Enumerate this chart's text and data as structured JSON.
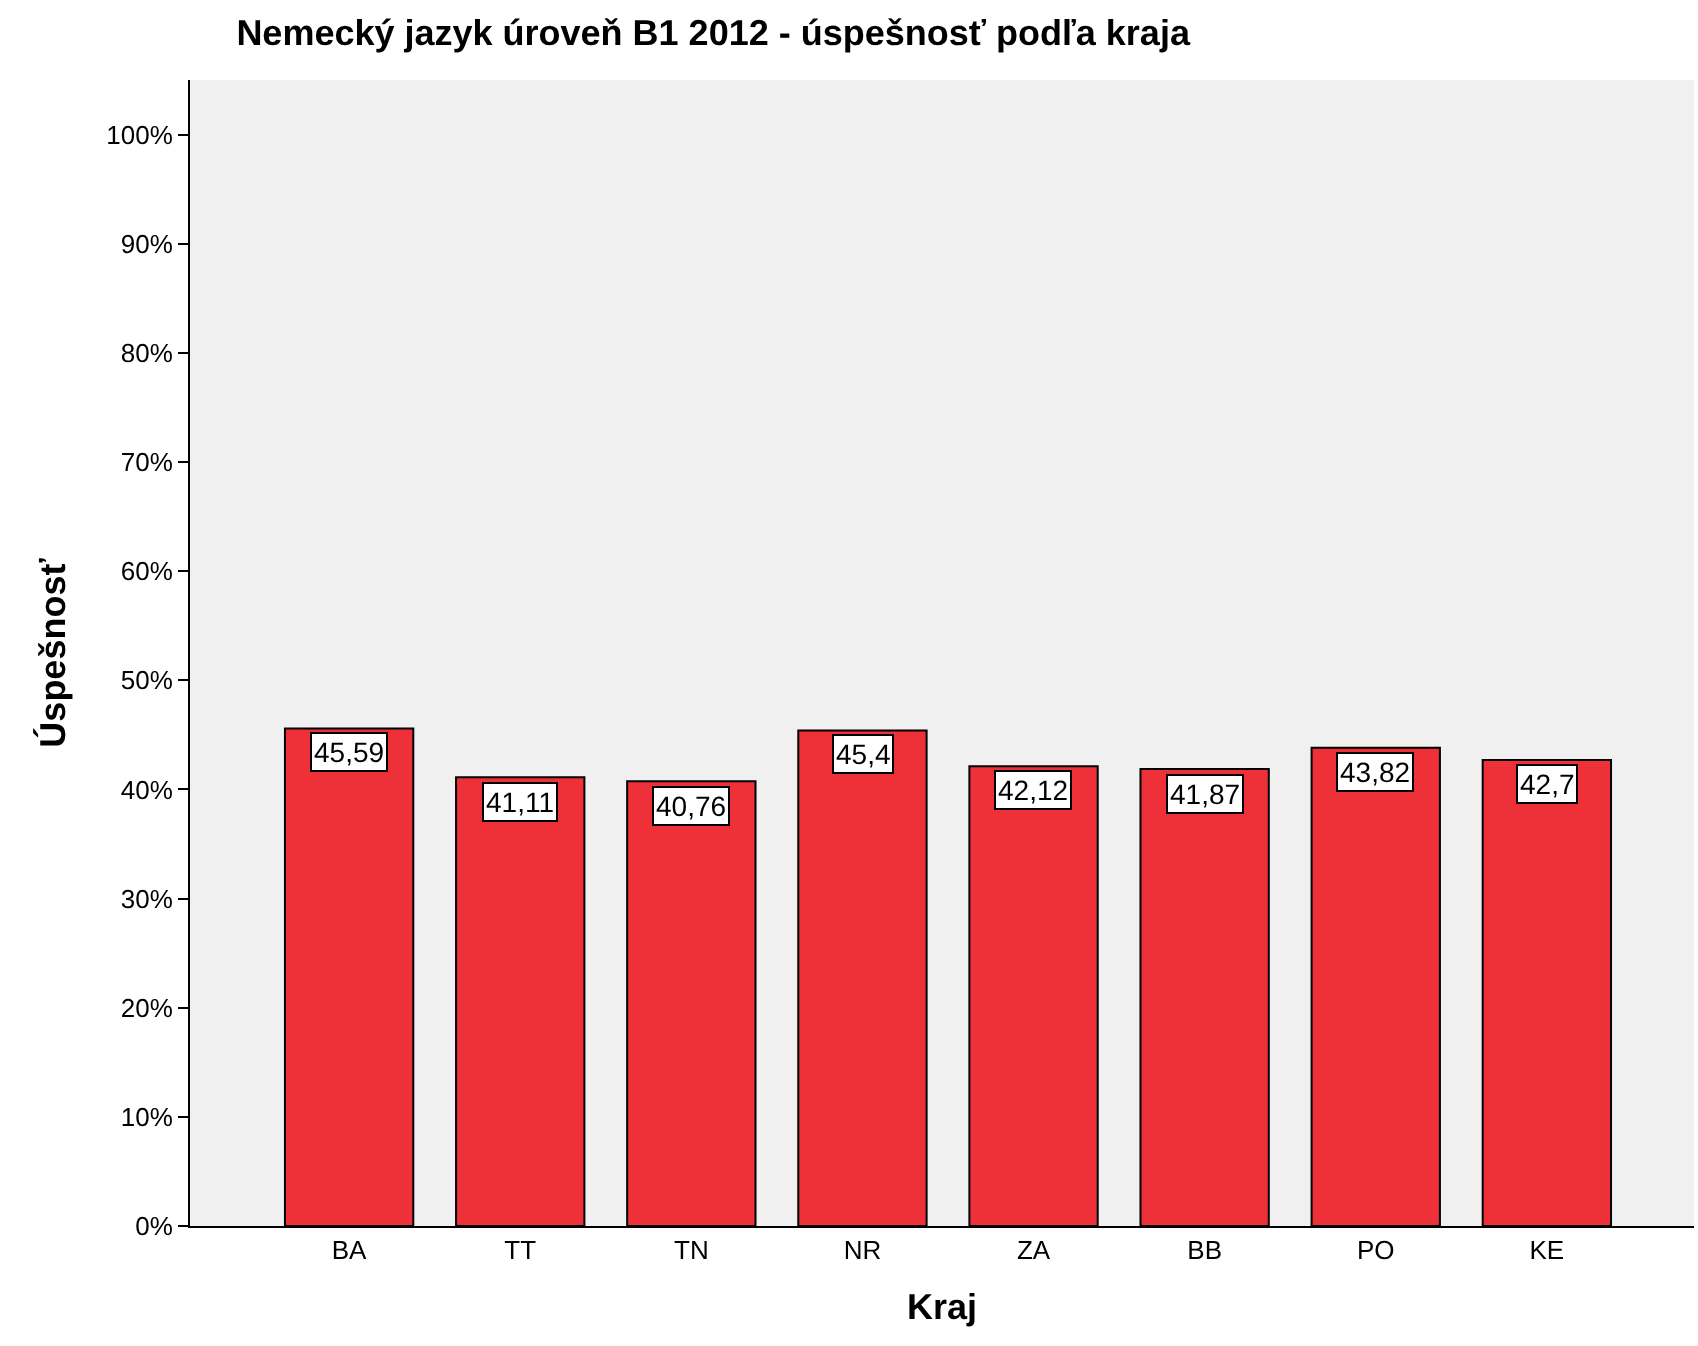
{
  "chart_data": {
    "type": "bar",
    "title": "Nemecký jazyk úroveň B1 2012 - úspešnosť podľa kraja",
    "xlabel": "Kraj",
    "ylabel": "Úspešnosť",
    "categories": [
      "BA",
      "TT",
      "TN",
      "NR",
      "ZA",
      "BB",
      "PO",
      "KE"
    ],
    "values": [
      45.59,
      41.11,
      40.76,
      45.4,
      42.12,
      41.87,
      43.82,
      42.7
    ],
    "value_labels": [
      "45,59",
      "41,11",
      "40,76",
      "45,4",
      "42,12",
      "41,87",
      "43,82",
      "42,7"
    ],
    "color": "#ee3039",
    "ylim": [
      0,
      105
    ],
    "yticks": [
      {
        "value": 0,
        "label": "0%"
      },
      {
        "value": 10,
        "label": "10%"
      },
      {
        "value": 20,
        "label": "20%"
      },
      {
        "value": 30,
        "label": "30%"
      },
      {
        "value": 40,
        "label": "40%"
      },
      {
        "value": 50,
        "label": "50%"
      },
      {
        "value": 60,
        "label": "60%"
      },
      {
        "value": 70,
        "label": "70%"
      },
      {
        "value": 80,
        "label": "80%"
      },
      {
        "value": 90,
        "label": "90%"
      },
      {
        "value": 100,
        "label": "100%"
      }
    ],
    "grid": false,
    "legend": false
  }
}
